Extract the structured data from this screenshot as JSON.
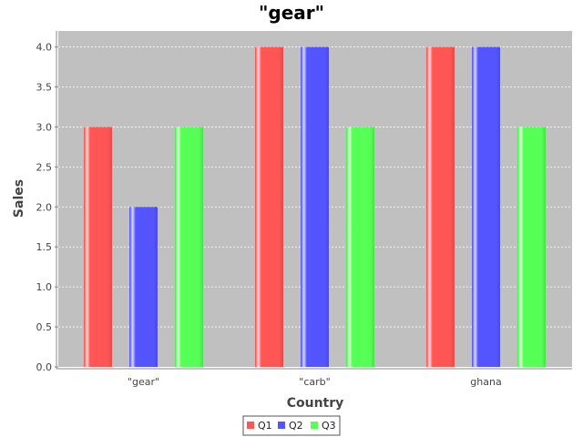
{
  "chart_data": {
    "type": "bar",
    "title": "\"gear\"",
    "xlabel": "Country",
    "ylabel": "Sales",
    "categories": [
      "\"gear\"",
      "\"carb\"",
      "ghana"
    ],
    "series": [
      {
        "name": "Q1",
        "color": "#ff5555",
        "values": [
          3.0,
          4.0,
          4.0
        ]
      },
      {
        "name": "Q2",
        "color": "#5555ff",
        "values": [
          2.0,
          4.0,
          4.0
        ]
      },
      {
        "name": "Q3",
        "color": "#55ff55",
        "values": [
          3.0,
          3.0,
          3.0
        ]
      }
    ],
    "ylim": [
      0,
      4.2
    ],
    "yticks": [
      "0.0",
      "0.5",
      "1.0",
      "1.5",
      "2.0",
      "2.5",
      "3.0",
      "3.5",
      "4.0"
    ],
    "grid": true,
    "plot_background": "#c0c0c0",
    "legend_position": "bottom"
  }
}
